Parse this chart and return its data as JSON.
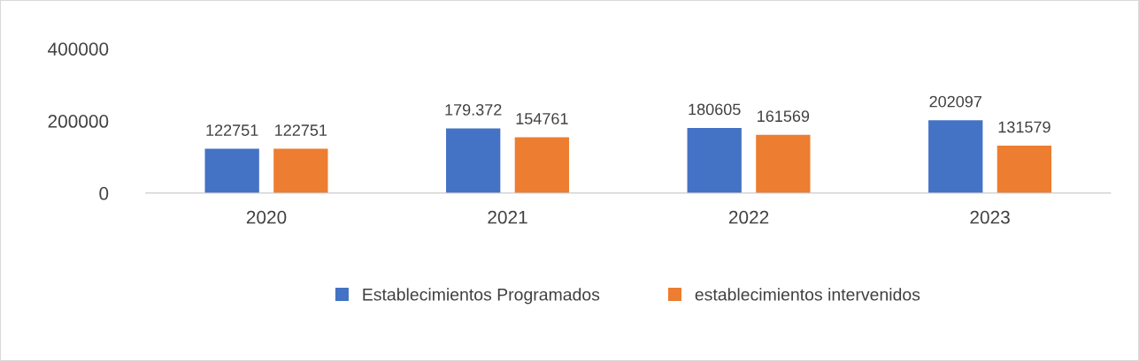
{
  "chart_data": {
    "type": "bar",
    "categories": [
      "2020",
      "2021",
      "2022",
      "2023"
    ],
    "series": [
      {
        "name": "Establecimientos Programados",
        "color": "#4472c4",
        "values": [
          122751,
          179372,
          180605,
          202097
        ],
        "value_labels": [
          "122751",
          "179.372",
          "180605",
          "202097"
        ]
      },
      {
        "name": "establecimientos intervenidos",
        "color": "#ed7d31",
        "values": [
          122751,
          154761,
          161569,
          131579
        ],
        "value_labels": [
          "122751",
          "154761",
          "161569",
          "131579"
        ]
      }
    ],
    "ylim": [
      0,
      400000
    ],
    "yticks": [
      0,
      200000,
      400000
    ],
    "grid": false,
    "legend": "bottom"
  }
}
